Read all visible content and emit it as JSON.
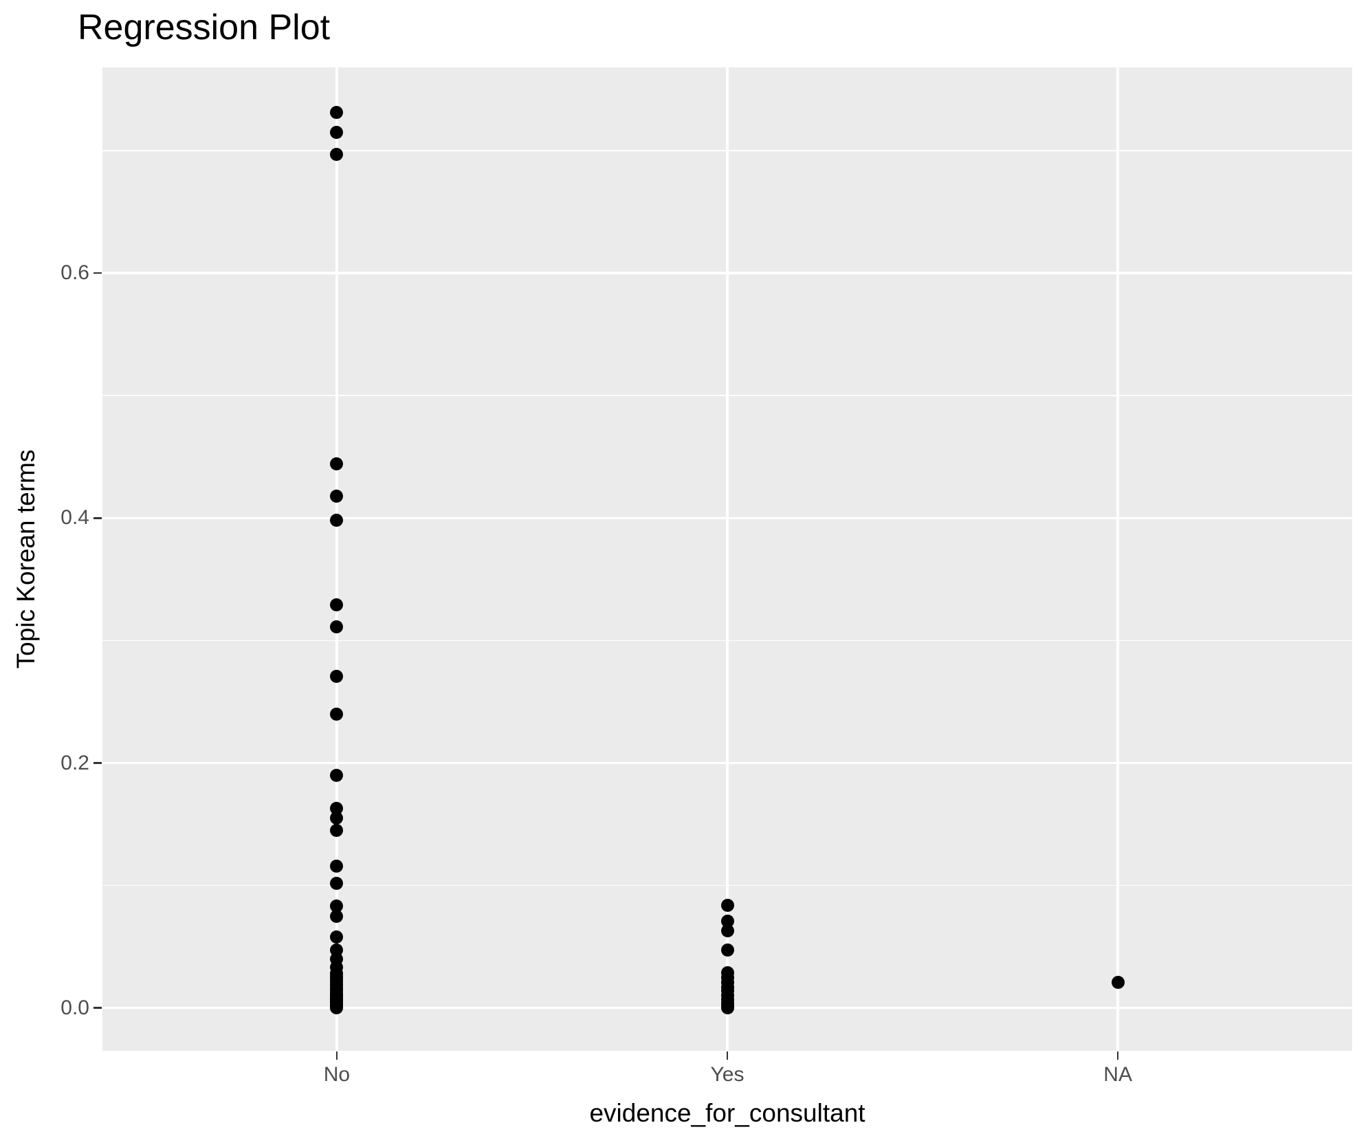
{
  "title": "Regression Plot",
  "axes": {
    "x": {
      "title": "evidence_for_consultant",
      "categories": [
        "No",
        "Yes",
        "NA"
      ]
    },
    "y": {
      "title": "Topic Korean terms",
      "tick_labels": [
        "0.0",
        "0.2",
        "0.4",
        "0.6"
      ],
      "tick_values": [
        0.0,
        0.2,
        0.4,
        0.6
      ],
      "minor_values": [
        0.1,
        0.3,
        0.5,
        0.7
      ]
    }
  },
  "colors": {
    "panel_background": "#EBEBEB",
    "gridline": "#FFFFFF",
    "point": "#000000",
    "tick_label": "#4D4D4D",
    "tick_mark": "#333333",
    "title": "#000000"
  },
  "chart_data": {
    "type": "scatter",
    "title": "Regression Plot",
    "xlabel": "evidence_for_consultant",
    "ylabel": "Topic Korean terms",
    "categories": [
      "No",
      "Yes",
      "NA"
    ],
    "ylim": [
      -0.035,
      0.768
    ],
    "grid": "on",
    "legend": "none",
    "series": [
      {
        "name": "No",
        "values": [
          0.731,
          0.715,
          0.697,
          0.444,
          0.418,
          0.398,
          0.329,
          0.311,
          0.271,
          0.24,
          0.19,
          0.163,
          0.155,
          0.145,
          0.116,
          0.102,
          0.083,
          0.075,
          0.058,
          0.047,
          0.04,
          0.033,
          0.028,
          0.026,
          0.024,
          0.022,
          0.02,
          0.018,
          0.016,
          0.014,
          0.012,
          0.011,
          0.01,
          0.009,
          0.008,
          0.007,
          0.006,
          0.005,
          0.004,
          0.003,
          0.002,
          0.001,
          0.0
        ]
      },
      {
        "name": "Yes",
        "values": [
          0.084,
          0.071,
          0.063,
          0.047,
          0.029,
          0.025,
          0.021,
          0.017,
          0.014,
          0.01,
          0.007,
          0.004,
          0.002,
          0.0
        ]
      },
      {
        "name": "NA",
        "values": [
          0.021
        ]
      }
    ]
  }
}
